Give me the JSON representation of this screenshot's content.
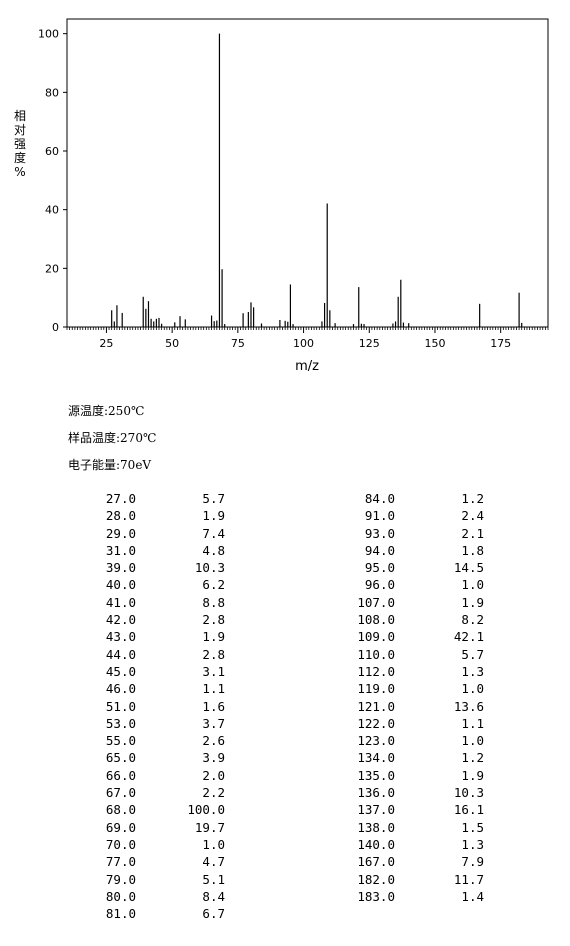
{
  "chart_data": {
    "type": "bar",
    "xlabel": "m/z",
    "ylabel_chars": [
      "相",
      "对",
      "强",
      "度",
      "%"
    ],
    "x_range": [
      10,
      193
    ],
    "ylim": [
      0,
      105
    ],
    "xticks": [
      25,
      50,
      75,
      100,
      125,
      150,
      175
    ],
    "yticks": [
      0,
      20,
      40,
      60,
      80,
      100
    ],
    "peaks": [
      {
        "x": 27.0,
        "y": 5.7
      },
      {
        "x": 28.0,
        "y": 1.9
      },
      {
        "x": 29.0,
        "y": 7.4
      },
      {
        "x": 31.0,
        "y": 4.8
      },
      {
        "x": 39.0,
        "y": 10.3
      },
      {
        "x": 40.0,
        "y": 6.2
      },
      {
        "x": 41.0,
        "y": 8.8
      },
      {
        "x": 42.0,
        "y": 2.8
      },
      {
        "x": 43.0,
        "y": 1.9
      },
      {
        "x": 44.0,
        "y": 2.8
      },
      {
        "x": 45.0,
        "y": 3.1
      },
      {
        "x": 46.0,
        "y": 1.1
      },
      {
        "x": 51.0,
        "y": 1.6
      },
      {
        "x": 53.0,
        "y": 3.7
      },
      {
        "x": 55.0,
        "y": 2.6
      },
      {
        "x": 65.0,
        "y": 3.9
      },
      {
        "x": 66.0,
        "y": 2.0
      },
      {
        "x": 67.0,
        "y": 2.2
      },
      {
        "x": 68.0,
        "y": 100.0
      },
      {
        "x": 69.0,
        "y": 19.7
      },
      {
        "x": 70.0,
        "y": 1.0
      },
      {
        "x": 77.0,
        "y": 4.7
      },
      {
        "x": 79.0,
        "y": 5.1
      },
      {
        "x": 80.0,
        "y": 8.4
      },
      {
        "x": 81.0,
        "y": 6.7
      },
      {
        "x": 84.0,
        "y": 1.2
      },
      {
        "x": 91.0,
        "y": 2.4
      },
      {
        "x": 93.0,
        "y": 2.1
      },
      {
        "x": 94.0,
        "y": 1.8
      },
      {
        "x": 95.0,
        "y": 14.5
      },
      {
        "x": 96.0,
        "y": 1.0
      },
      {
        "x": 107.0,
        "y": 1.9
      },
      {
        "x": 108.0,
        "y": 8.2
      },
      {
        "x": 109.0,
        "y": 42.1
      },
      {
        "x": 110.0,
        "y": 5.7
      },
      {
        "x": 112.0,
        "y": 1.3
      },
      {
        "x": 119.0,
        "y": 1.0
      },
      {
        "x": 121.0,
        "y": 13.6
      },
      {
        "x": 122.0,
        "y": 1.1
      },
      {
        "x": 123.0,
        "y": 1.0
      },
      {
        "x": 134.0,
        "y": 1.2
      },
      {
        "x": 135.0,
        "y": 1.9
      },
      {
        "x": 136.0,
        "y": 10.3
      },
      {
        "x": 137.0,
        "y": 16.1
      },
      {
        "x": 138.0,
        "y": 1.5
      },
      {
        "x": 140.0,
        "y": 1.3
      },
      {
        "x": 167.0,
        "y": 7.9
      },
      {
        "x": 182.0,
        "y": 11.7
      },
      {
        "x": 183.0,
        "y": 1.4
      }
    ]
  },
  "info": {
    "source_temp": "源温度:250℃",
    "sample_temp": "样品温度:270℃",
    "electron_energy": "电子能量:70eV"
  },
  "table_left": [
    [
      "27.0",
      "5.7"
    ],
    [
      "28.0",
      "1.9"
    ],
    [
      "29.0",
      "7.4"
    ],
    [
      "31.0",
      "4.8"
    ],
    [
      "39.0",
      "10.3"
    ],
    [
      "40.0",
      "6.2"
    ],
    [
      "41.0",
      "8.8"
    ],
    [
      "42.0",
      "2.8"
    ],
    [
      "43.0",
      "1.9"
    ],
    [
      "44.0",
      "2.8"
    ],
    [
      "45.0",
      "3.1"
    ],
    [
      "46.0",
      "1.1"
    ],
    [
      "51.0",
      "1.6"
    ],
    [
      "53.0",
      "3.7"
    ],
    [
      "55.0",
      "2.6"
    ],
    [
      "65.0",
      "3.9"
    ],
    [
      "66.0",
      "2.0"
    ],
    [
      "67.0",
      "2.2"
    ],
    [
      "68.0",
      "100.0"
    ],
    [
      "69.0",
      "19.7"
    ],
    [
      "70.0",
      "1.0"
    ],
    [
      "77.0",
      "4.7"
    ],
    [
      "79.0",
      "5.1"
    ],
    [
      "80.0",
      "8.4"
    ],
    [
      "81.0",
      "6.7"
    ]
  ],
  "table_right": [
    [
      "84.0",
      "1.2"
    ],
    [
      "91.0",
      "2.4"
    ],
    [
      "93.0",
      "2.1"
    ],
    [
      "94.0",
      "1.8"
    ],
    [
      "95.0",
      "14.5"
    ],
    [
      "96.0",
      "1.0"
    ],
    [
      "107.0",
      "1.9"
    ],
    [
      "108.0",
      "8.2"
    ],
    [
      "109.0",
      "42.1"
    ],
    [
      "110.0",
      "5.7"
    ],
    [
      "112.0",
      "1.3"
    ],
    [
      "119.0",
      "1.0"
    ],
    [
      "121.0",
      "13.6"
    ],
    [
      "122.0",
      "1.1"
    ],
    [
      "123.0",
      "1.0"
    ],
    [
      "134.0",
      "1.2"
    ],
    [
      "135.0",
      "1.9"
    ],
    [
      "136.0",
      "10.3"
    ],
    [
      "137.0",
      "16.1"
    ],
    [
      "138.0",
      "1.5"
    ],
    [
      "140.0",
      "1.3"
    ],
    [
      "167.0",
      "7.9"
    ],
    [
      "182.0",
      "11.7"
    ],
    [
      "183.0",
      "1.4"
    ]
  ]
}
